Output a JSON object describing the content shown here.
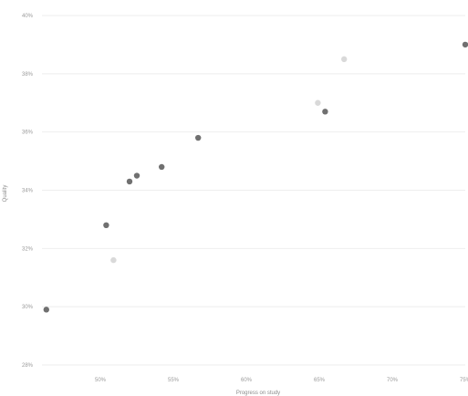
{
  "chart_data": {
    "type": "scatter",
    "title": "",
    "xlabel": "Progress on study",
    "ylabel": "Quality",
    "x_ticks": [
      "50%",
      "55%",
      "60%",
      "65%",
      "70%",
      "75%"
    ],
    "y_ticks": [
      "28%",
      "30%",
      "32%",
      "34%",
      "36%",
      "38%",
      "40%"
    ],
    "xlim": [
      46,
      75
    ],
    "ylim": [
      28,
      40
    ],
    "grid": true,
    "legend": "none",
    "series": [
      {
        "color": "#707070",
        "points": [
          {
            "x": 46.3,
            "y": 29.9
          },
          {
            "x": 50.4,
            "y": 32.8
          },
          {
            "x": 52.0,
            "y": 34.3
          },
          {
            "x": 52.5,
            "y": 34.5
          },
          {
            "x": 54.2,
            "y": 34.8
          },
          {
            "x": 56.7,
            "y": 35.8
          },
          {
            "x": 65.4,
            "y": 36.7
          },
          {
            "x": 75.0,
            "y": 39.0
          }
        ]
      },
      {
        "color": "#d9d9d9",
        "points": [
          {
            "x": 50.9,
            "y": 31.6
          },
          {
            "x": 64.9,
            "y": 37.0
          },
          {
            "x": 66.7,
            "y": 38.5
          }
        ]
      }
    ]
  }
}
